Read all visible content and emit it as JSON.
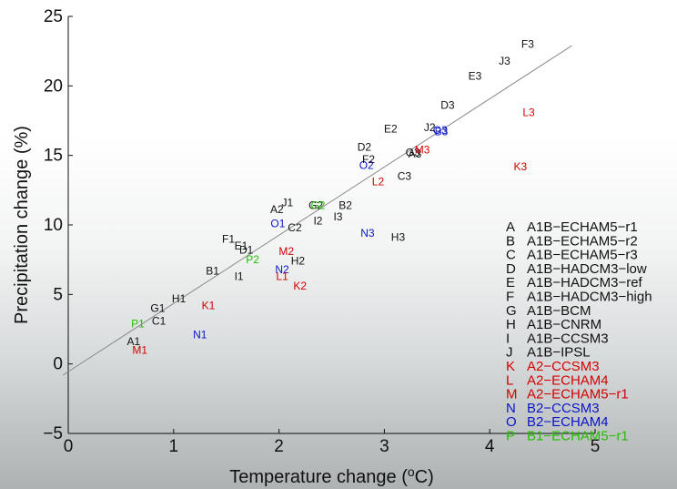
{
  "chart_data": {
    "type": "scatter",
    "xlabel": "Temperature change (°C)",
    "ylabel": "Precipitation change (%)",
    "xlim": [
      0,
      5
    ],
    "ylim": [
      -5,
      25
    ],
    "x_ticks": [
      0,
      1,
      2,
      3,
      4,
      5
    ],
    "y_ticks": [
      -5,
      0,
      5,
      10,
      15,
      20,
      25
    ],
    "grid": false,
    "legend_position": "right",
    "trend_line": {
      "x": [
        -0.05,
        4.78
      ],
      "y": [
        -0.8,
        22.9
      ],
      "color": "#888888"
    },
    "legend": [
      {
        "key": "A",
        "label": "A1B−ECHAM5−r1",
        "color": "#111111"
      },
      {
        "key": "B",
        "label": "A1B−ECHAM5−r2",
        "color": "#111111"
      },
      {
        "key": "C",
        "label": "A1B−ECHAM5−r3",
        "color": "#111111"
      },
      {
        "key": "D",
        "label": "A1B−HADCM3−low",
        "color": "#111111"
      },
      {
        "key": "E",
        "label": "A1B−HADCM3−ref",
        "color": "#111111"
      },
      {
        "key": "F",
        "label": "A1B−HADCM3−high",
        "color": "#111111"
      },
      {
        "key": "G",
        "label": "A1B−BCM",
        "color": "#111111"
      },
      {
        "key": "H",
        "label": "A1B−CNRM",
        "color": "#111111"
      },
      {
        "key": "I",
        "label": "A1B−CCSM3",
        "color": "#111111"
      },
      {
        "key": "J",
        "label": "A1B−IPSL",
        "color": "#111111"
      },
      {
        "key": "K",
        "label": "A2−CCSM3",
        "color": "#d40000"
      },
      {
        "key": "L",
        "label": "A2−ECHAM4",
        "color": "#d40000"
      },
      {
        "key": "M",
        "label": "A2−ECHAM5−r1",
        "color": "#d40000"
      },
      {
        "key": "N",
        "label": "B2−CCSM3",
        "color": "#0a14c8"
      },
      {
        "key": "O",
        "label": "B2−ECHAM4",
        "color": "#0a14c8"
      },
      {
        "key": "P",
        "label": "B1−ECHAM5−r1",
        "color": "#22c000"
      }
    ],
    "points": [
      {
        "label": "A1",
        "x": 0.62,
        "y": 1.6,
        "color": "#111111"
      },
      {
        "label": "M1",
        "x": 0.68,
        "y": 1.0,
        "color": "#d40000"
      },
      {
        "label": "P1",
        "x": 0.66,
        "y": 2.9,
        "color": "#22c000"
      },
      {
        "label": "C1",
        "x": 0.86,
        "y": 3.1,
        "color": "#111111"
      },
      {
        "label": "G1",
        "x": 0.85,
        "y": 4.0,
        "color": "#111111"
      },
      {
        "label": "N1",
        "x": 1.25,
        "y": 2.1,
        "color": "#0a14c8"
      },
      {
        "label": "H1",
        "x": 1.05,
        "y": 4.7,
        "color": "#111111"
      },
      {
        "label": "K1",
        "x": 1.33,
        "y": 4.2,
        "color": "#d40000"
      },
      {
        "label": "B1",
        "x": 1.37,
        "y": 6.7,
        "color": "#111111"
      },
      {
        "label": "I1",
        "x": 1.62,
        "y": 6.3,
        "color": "#111111"
      },
      {
        "label": "P2",
        "x": 1.75,
        "y": 7.5,
        "color": "#22c000"
      },
      {
        "label": "F1",
        "x": 1.52,
        "y": 9.0,
        "color": "#111111"
      },
      {
        "label": "E1",
        "x": 1.64,
        "y": 8.5,
        "color": "#111111"
      },
      {
        "label": "D1",
        "x": 1.69,
        "y": 8.2,
        "color": "#111111"
      },
      {
        "label": "N2",
        "x": 2.03,
        "y": 6.8,
        "color": "#0a14c8"
      },
      {
        "label": "L1",
        "x": 2.03,
        "y": 6.3,
        "color": "#d40000"
      },
      {
        "label": "M2",
        "x": 2.07,
        "y": 8.1,
        "color": "#d40000"
      },
      {
        "label": "H2",
        "x": 2.18,
        "y": 7.4,
        "color": "#111111"
      },
      {
        "label": "K2",
        "x": 2.2,
        "y": 5.6,
        "color": "#d40000"
      },
      {
        "label": "O1",
        "x": 1.99,
        "y": 10.1,
        "color": "#0a14c8"
      },
      {
        "label": "C2",
        "x": 2.15,
        "y": 9.8,
        "color": "#111111"
      },
      {
        "label": "A2",
        "x": 1.98,
        "y": 11.1,
        "color": "#111111"
      },
      {
        "label": "J1",
        "x": 2.08,
        "y": 11.6,
        "color": "#111111"
      },
      {
        "label": "G2",
        "x": 2.35,
        "y": 11.4,
        "color": "#111111"
      },
      {
        "label": "G2",
        "x": 2.37,
        "y": 11.4,
        "color": "#22c000"
      },
      {
        "label": "I2",
        "x": 2.37,
        "y": 10.3,
        "color": "#111111"
      },
      {
        "label": "B2",
        "x": 2.63,
        "y": 11.4,
        "color": "#111111"
      },
      {
        "label": "I3",
        "x": 2.56,
        "y": 10.6,
        "color": "#111111"
      },
      {
        "label": "N3",
        "x": 2.84,
        "y": 9.4,
        "color": "#0a14c8"
      },
      {
        "label": "H3",
        "x": 3.13,
        "y": 9.1,
        "color": "#111111"
      },
      {
        "label": "L2",
        "x": 2.94,
        "y": 13.1,
        "color": "#d40000"
      },
      {
        "label": "C3",
        "x": 3.19,
        "y": 13.5,
        "color": "#111111"
      },
      {
        "label": "O2",
        "x": 2.83,
        "y": 14.3,
        "color": "#0a14c8"
      },
      {
        "label": "F2",
        "x": 2.85,
        "y": 14.7,
        "color": "#111111"
      },
      {
        "label": "D2",
        "x": 2.81,
        "y": 15.6,
        "color": "#111111"
      },
      {
        "label": "E2",
        "x": 3.06,
        "y": 16.9,
        "color": "#111111"
      },
      {
        "label": "A3",
        "x": 3.29,
        "y": 15.1,
        "color": "#111111"
      },
      {
        "label": "G3",
        "x": 3.27,
        "y": 15.2,
        "color": "#111111"
      },
      {
        "label": "M3",
        "x": 3.36,
        "y": 15.4,
        "color": "#d40000"
      },
      {
        "label": "J2",
        "x": 3.43,
        "y": 17.0,
        "color": "#111111"
      },
      {
        "label": "O3",
        "x": 3.53,
        "y": 16.8,
        "color": "#0a14c8"
      },
      {
        "label": "B3",
        "x": 3.54,
        "y": 16.7,
        "color": "#0a14c8"
      },
      {
        "label": "D3",
        "x": 3.6,
        "y": 18.6,
        "color": "#111111"
      },
      {
        "label": "E3",
        "x": 3.86,
        "y": 20.7,
        "color": "#111111"
      },
      {
        "label": "J3",
        "x": 4.14,
        "y": 21.8,
        "color": "#111111"
      },
      {
        "label": "F3",
        "x": 4.36,
        "y": 23.0,
        "color": "#111111"
      },
      {
        "label": "L3",
        "x": 4.37,
        "y": 18.1,
        "color": "#d40000"
      },
      {
        "label": "K3",
        "x": 4.29,
        "y": 14.2,
        "color": "#d40000"
      }
    ]
  }
}
